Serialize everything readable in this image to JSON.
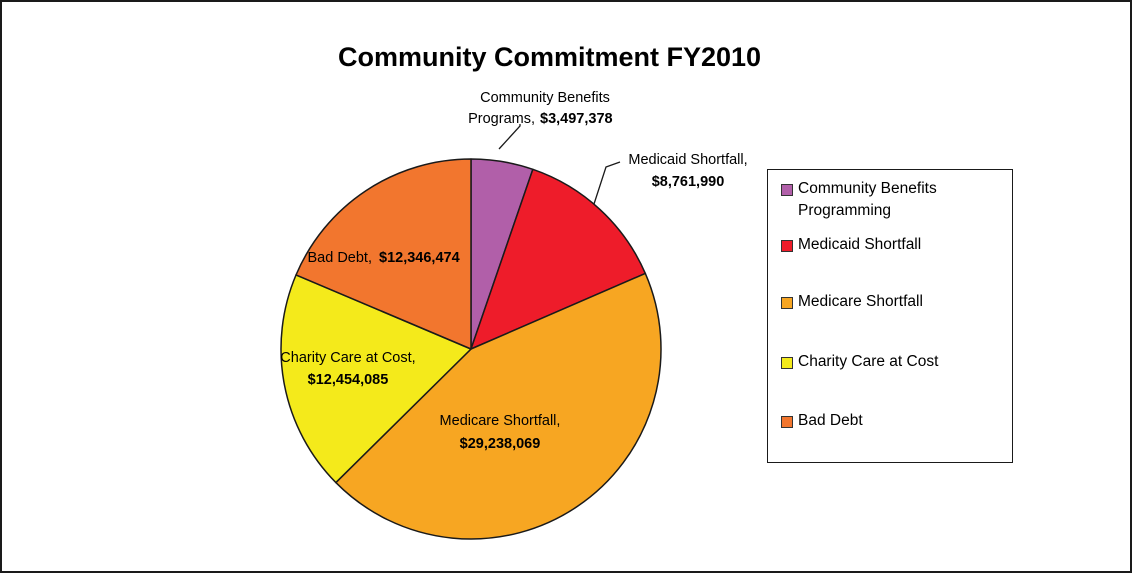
{
  "chart_data": {
    "type": "pie",
    "title": "Community Commitment FY2010",
    "slices": [
      {
        "legend": "Community Benefits Programming",
        "label_lines": [
          "Community Benefits",
          "Programs,"
        ],
        "value_label": "$3,497,378",
        "value": 3497378,
        "color": "#B15FA9"
      },
      {
        "legend": "Medicaid Shortfall",
        "label_lines": [
          "Medicaid Shortfall,"
        ],
        "value_label": "$8,761,990",
        "value": 8761990,
        "color": "#EE1C2A"
      },
      {
        "legend": "Medicare Shortfall",
        "label_lines": [
          "Medicare Shortfall,"
        ],
        "value_label": "$29,238,069",
        "value": 29238069,
        "color": "#F7A622"
      },
      {
        "legend": "Charity Care at Cost",
        "label_lines": [
          "Charity Care at Cost,"
        ],
        "value_label": "$12,454,085",
        "value": 12454085,
        "color": "#F4EA1B"
      },
      {
        "legend": "Bad Debt",
        "label_lines": [
          "Bad Debt,"
        ],
        "value_label": "$12,346,474",
        "value": 12346474,
        "color": "#F2762E"
      }
    ],
    "legend_position": "right",
    "start_angle_deg": 0,
    "direction": "clockwise"
  }
}
